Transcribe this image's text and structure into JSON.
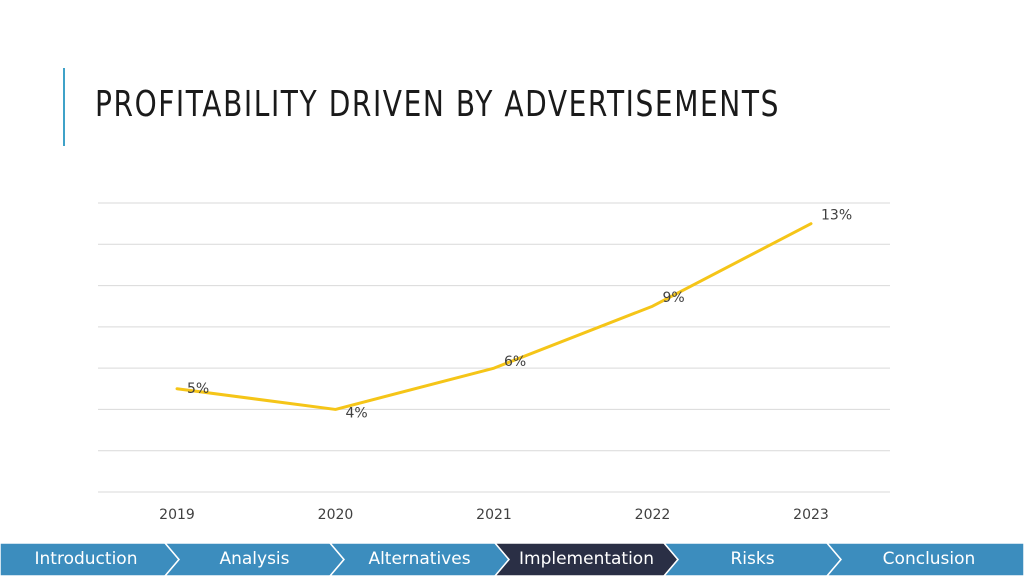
{
  "slide": {
    "title": "PROFITABILITY DRIVEN BY ADVERTISEMENTS"
  },
  "colors": {
    "accent_bar": "#3fa2c8",
    "line": "#f5c518",
    "grid": "#d9d9d9",
    "nav_default": "#3c8dbe",
    "nav_active": "#2a2f45"
  },
  "chart_data": {
    "type": "line",
    "categories": [
      "2019",
      "2020",
      "2021",
      "2022",
      "2023"
    ],
    "series": [
      {
        "values": [
          5,
          4,
          6,
          9,
          13
        ],
        "data_labels": [
          "5%",
          "4%",
          "6%",
          "9%",
          "13%"
        ]
      }
    ],
    "ylim": [
      0,
      14
    ],
    "grid": true,
    "legend": "none",
    "title": "",
    "xlabel": "",
    "ylabel": ""
  },
  "nav": {
    "items": [
      {
        "label": "Introduction",
        "active": false
      },
      {
        "label": "Analysis",
        "active": false
      },
      {
        "label": "Alternatives",
        "active": false
      },
      {
        "label": "Implementation",
        "active": true
      },
      {
        "label": "Risks",
        "active": false
      },
      {
        "label": "Conclusion",
        "active": false
      }
    ]
  }
}
